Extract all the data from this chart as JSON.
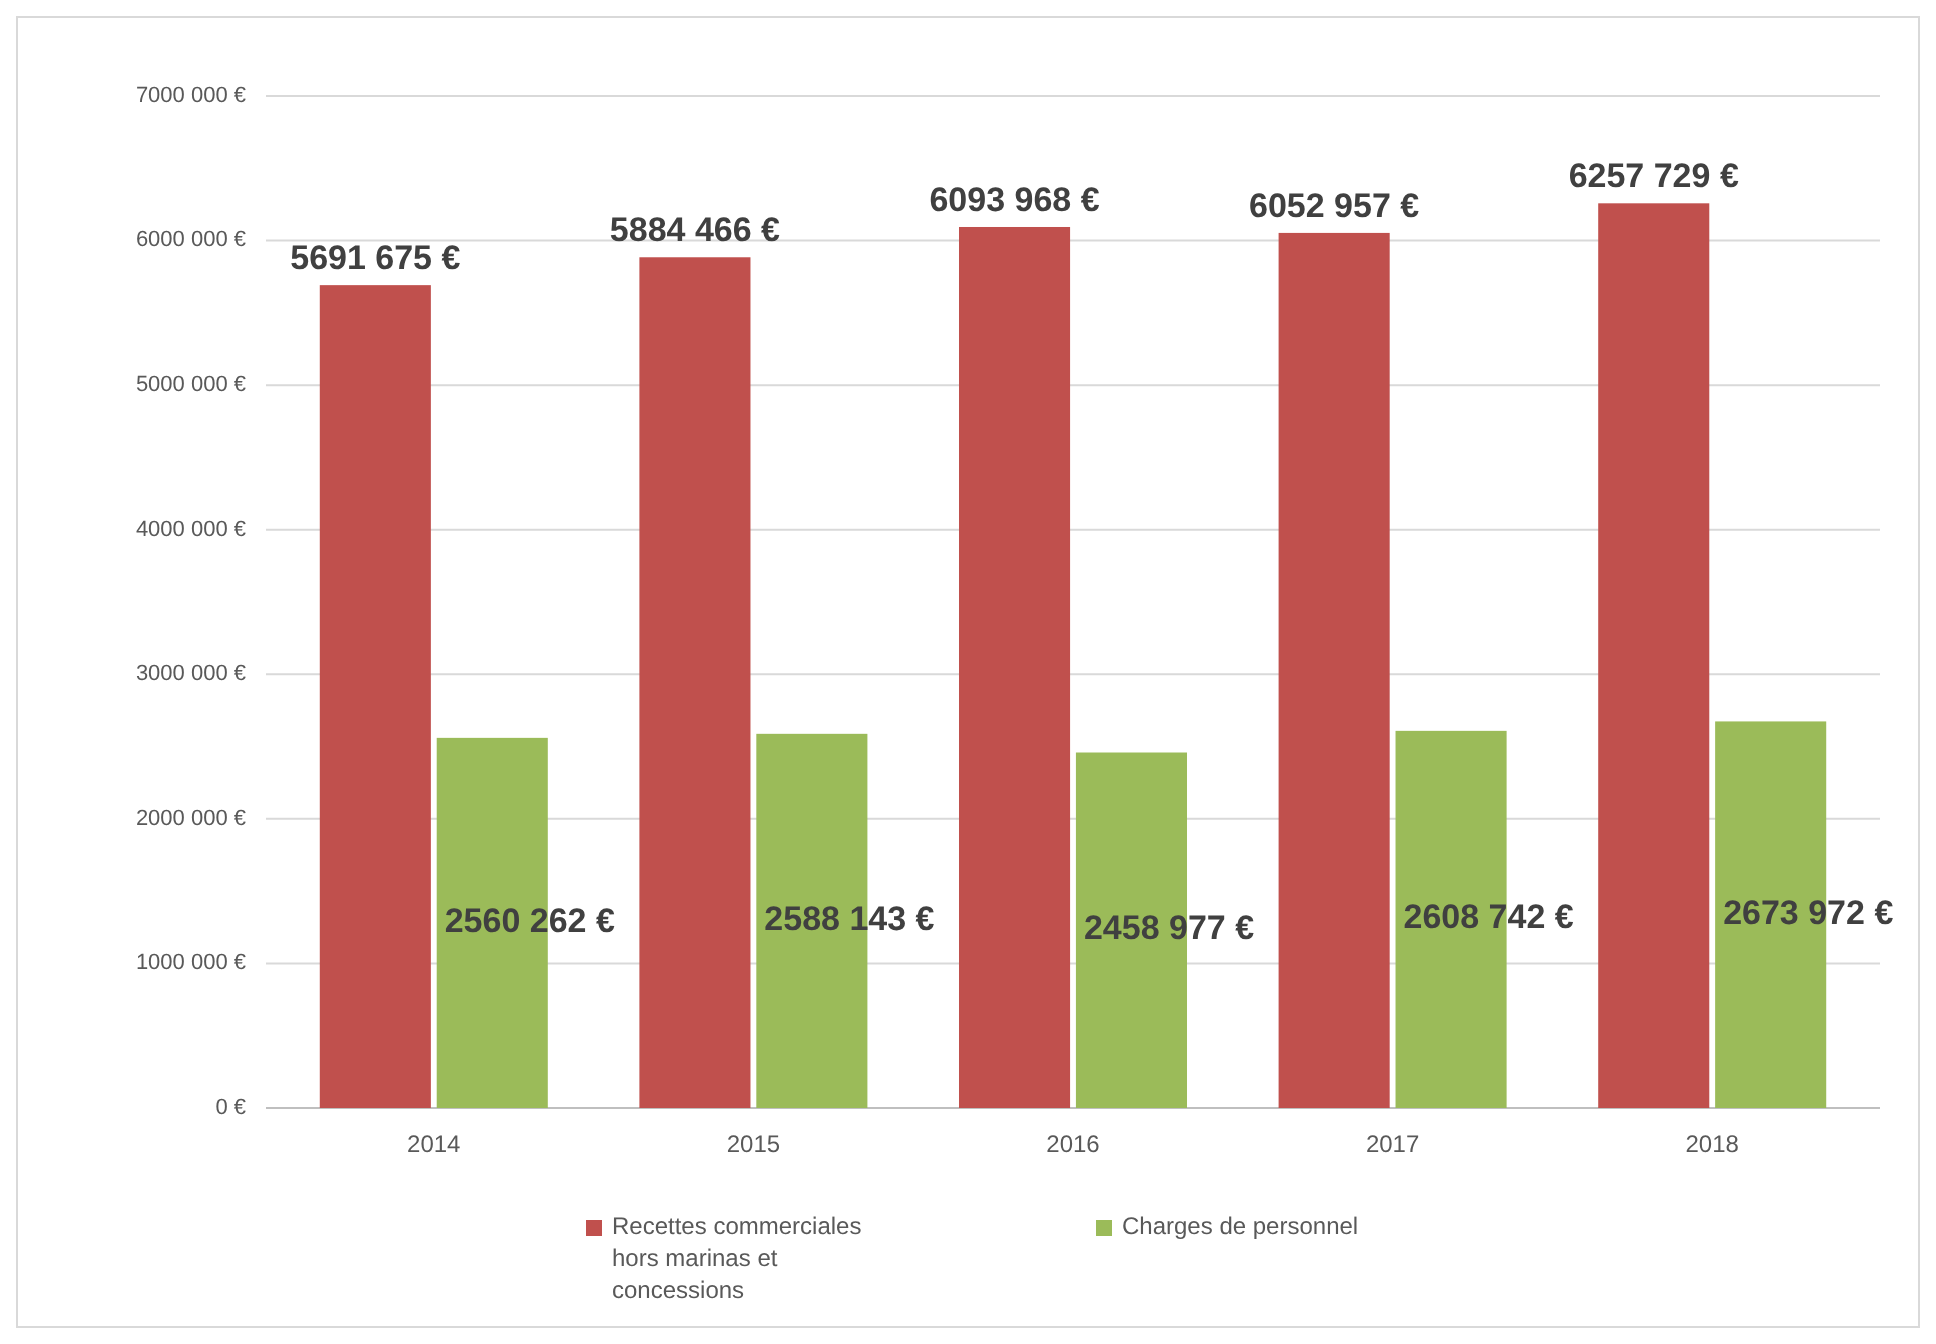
{
  "chart_data": {
    "type": "bar",
    "categories": [
      "2014",
      "2015",
      "2016",
      "2017",
      "2018"
    ],
    "series": [
      {
        "name": "Recettes commerciales hors marinas et concessions",
        "color": "#c0504d",
        "values": [
          5691675,
          5884466,
          6093968,
          6052957,
          6257729
        ],
        "value_labels": [
          "5691 675 €",
          "5884 466 €",
          "6093 968 €",
          "6052 957 €",
          "6257 729 €"
        ]
      },
      {
        "name": "Charges de personnel",
        "color": "#9bbb59",
        "values": [
          2560262,
          2588143,
          2458977,
          2608742,
          2673972
        ],
        "value_labels": [
          "2560 262 €",
          "2588 143 €",
          "2458 977 €",
          "2608 742 €",
          "2673 972 €"
        ]
      }
    ],
    "ylim": [
      0,
      7000000
    ],
    "yticks": [
      {
        "value": 0,
        "label": "0 €"
      },
      {
        "value": 1000000,
        "label": "1000 000 €"
      },
      {
        "value": 2000000,
        "label": "2000 000 €"
      },
      {
        "value": 3000000,
        "label": "3000 000 €"
      },
      {
        "value": 4000000,
        "label": "4000 000 €"
      },
      {
        "value": 5000000,
        "label": "5000 000 €"
      },
      {
        "value": 6000000,
        "label": "6000 000 €"
      },
      {
        "value": 7000000,
        "label": "7000 000 €"
      }
    ],
    "grid": true,
    "legend": "bottom"
  }
}
